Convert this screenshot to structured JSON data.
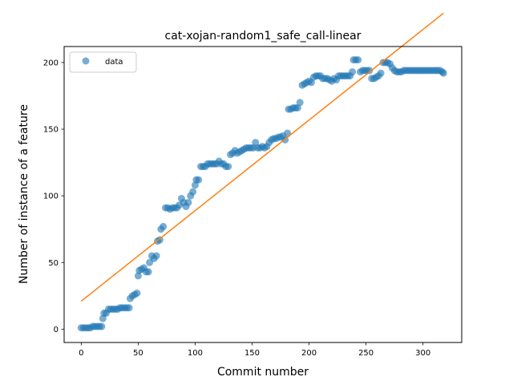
{
  "chart_data": {
    "type": "scatter",
    "title": "cat-xojan-random1_safe_call-linear",
    "xlabel": "Commit number",
    "ylabel": "Number of instance of a feature",
    "xlim": [
      -15,
      334
    ],
    "ylim": [
      -10,
      212
    ],
    "xticks": [
      0,
      50,
      100,
      150,
      200,
      250,
      300
    ],
    "yticks": [
      0,
      50,
      100,
      150,
      200
    ],
    "grid": false,
    "legend": {
      "placement": "top-left",
      "entries": [
        "data"
      ]
    },
    "colors": {
      "data": "#1f77b4",
      "fit": "#ff7f0e"
    },
    "series": [
      {
        "name": "data",
        "kind": "points",
        "points": [
          [
            0,
            1
          ],
          [
            2,
            1
          ],
          [
            4,
            1
          ],
          [
            6,
            1
          ],
          [
            8,
            1
          ],
          [
            10,
            2
          ],
          [
            12,
            2
          ],
          [
            14,
            2
          ],
          [
            16,
            2
          ],
          [
            18,
            2
          ],
          [
            19,
            8
          ],
          [
            20,
            12
          ],
          [
            22,
            12
          ],
          [
            24,
            15
          ],
          [
            26,
            15
          ],
          [
            28,
            15
          ],
          [
            30,
            15
          ],
          [
            32,
            15
          ],
          [
            34,
            16
          ],
          [
            36,
            16
          ],
          [
            38,
            16
          ],
          [
            40,
            16
          ],
          [
            42,
            16
          ],
          [
            43,
            23
          ],
          [
            45,
            25
          ],
          [
            47,
            26
          ],
          [
            49,
            27
          ],
          [
            50,
            40
          ],
          [
            51,
            44
          ],
          [
            53,
            45
          ],
          [
            55,
            46
          ],
          [
            57,
            43
          ],
          [
            59,
            43
          ],
          [
            60,
            50
          ],
          [
            62,
            55
          ],
          [
            64,
            53
          ],
          [
            66,
            55
          ],
          [
            67,
            66
          ],
          [
            69,
            67
          ],
          [
            70,
            75
          ],
          [
            72,
            77
          ],
          [
            74,
            91
          ],
          [
            76,
            91
          ],
          [
            78,
            90
          ],
          [
            80,
            91
          ],
          [
            82,
            91
          ],
          [
            84,
            91
          ],
          [
            86,
            93
          ],
          [
            88,
            98
          ],
          [
            90,
            95
          ],
          [
            92,
            92
          ],
          [
            94,
            95
          ],
          [
            96,
            100
          ],
          [
            98,
            103
          ],
          [
            100,
            108
          ],
          [
            101,
            112
          ],
          [
            103,
            112
          ],
          [
            105,
            122
          ],
          [
            107,
            122
          ],
          [
            109,
            122
          ],
          [
            111,
            124
          ],
          [
            113,
            124
          ],
          [
            115,
            124
          ],
          [
            117,
            124
          ],
          [
            119,
            124
          ],
          [
            121,
            126
          ],
          [
            123,
            124
          ],
          [
            125,
            124
          ],
          [
            127,
            122
          ],
          [
            129,
            122
          ],
          [
            131,
            131
          ],
          [
            133,
            132
          ],
          [
            135,
            134
          ],
          [
            137,
            132
          ],
          [
            139,
            133
          ],
          [
            141,
            134
          ],
          [
            143,
            135
          ],
          [
            145,
            136
          ],
          [
            147,
            136
          ],
          [
            149,
            136
          ],
          [
            151,
            136
          ],
          [
            153,
            140
          ],
          [
            155,
            136
          ],
          [
            157,
            136
          ],
          [
            159,
            137
          ],
          [
            161,
            136
          ],
          [
            163,
            137
          ],
          [
            165,
            140
          ],
          [
            167,
            142
          ],
          [
            169,
            143
          ],
          [
            171,
            143
          ],
          [
            173,
            144
          ],
          [
            175,
            144
          ],
          [
            177,
            145
          ],
          [
            179,
            142
          ],
          [
            181,
            147
          ],
          [
            182,
            165
          ],
          [
            184,
            165
          ],
          [
            186,
            166
          ],
          [
            188,
            166
          ],
          [
            190,
            166
          ],
          [
            192,
            170
          ],
          [
            194,
            183
          ],
          [
            196,
            184
          ],
          [
            198,
            185
          ],
          [
            200,
            186
          ],
          [
            202,
            185
          ],
          [
            204,
            189
          ],
          [
            206,
            190
          ],
          [
            208,
            190
          ],
          [
            210,
            190
          ],
          [
            212,
            188
          ],
          [
            214,
            188
          ],
          [
            216,
            188
          ],
          [
            218,
            187
          ],
          [
            220,
            186
          ],
          [
            222,
            188
          ],
          [
            224,
            187
          ],
          [
            226,
            190
          ],
          [
            228,
            190
          ],
          [
            230,
            190
          ],
          [
            232,
            190
          ],
          [
            234,
            190
          ],
          [
            236,
            190
          ],
          [
            238,
            193
          ],
          [
            239,
            202
          ],
          [
            241,
            202
          ],
          [
            243,
            202
          ],
          [
            245,
            193
          ],
          [
            247,
            194
          ],
          [
            249,
            194
          ],
          [
            251,
            194
          ],
          [
            253,
            194
          ],
          [
            255,
            188
          ],
          [
            257,
            188
          ],
          [
            259,
            189
          ],
          [
            261,
            190
          ],
          [
            263,
            192
          ],
          [
            265,
            200
          ],
          [
            267,
            200
          ],
          [
            269,
            200
          ],
          [
            271,
            199
          ],
          [
            273,
            196
          ],
          [
            275,
            194
          ],
          [
            277,
            193
          ],
          [
            279,
            193
          ],
          [
            281,
            193
          ],
          [
            283,
            194
          ],
          [
            285,
            194
          ],
          [
            287,
            194
          ],
          [
            289,
            194
          ],
          [
            291,
            194
          ],
          [
            293,
            194
          ],
          [
            295,
            194
          ],
          [
            297,
            194
          ],
          [
            299,
            194
          ],
          [
            301,
            194
          ],
          [
            303,
            194
          ],
          [
            305,
            194
          ],
          [
            307,
            194
          ],
          [
            309,
            194
          ],
          [
            311,
            194
          ],
          [
            313,
            194
          ],
          [
            315,
            194
          ],
          [
            317,
            193
          ],
          [
            318,
            192
          ]
        ]
      },
      {
        "kind": "line",
        "points": [
          [
            0,
            21
          ],
          [
            318,
            237
          ]
        ]
      }
    ]
  }
}
